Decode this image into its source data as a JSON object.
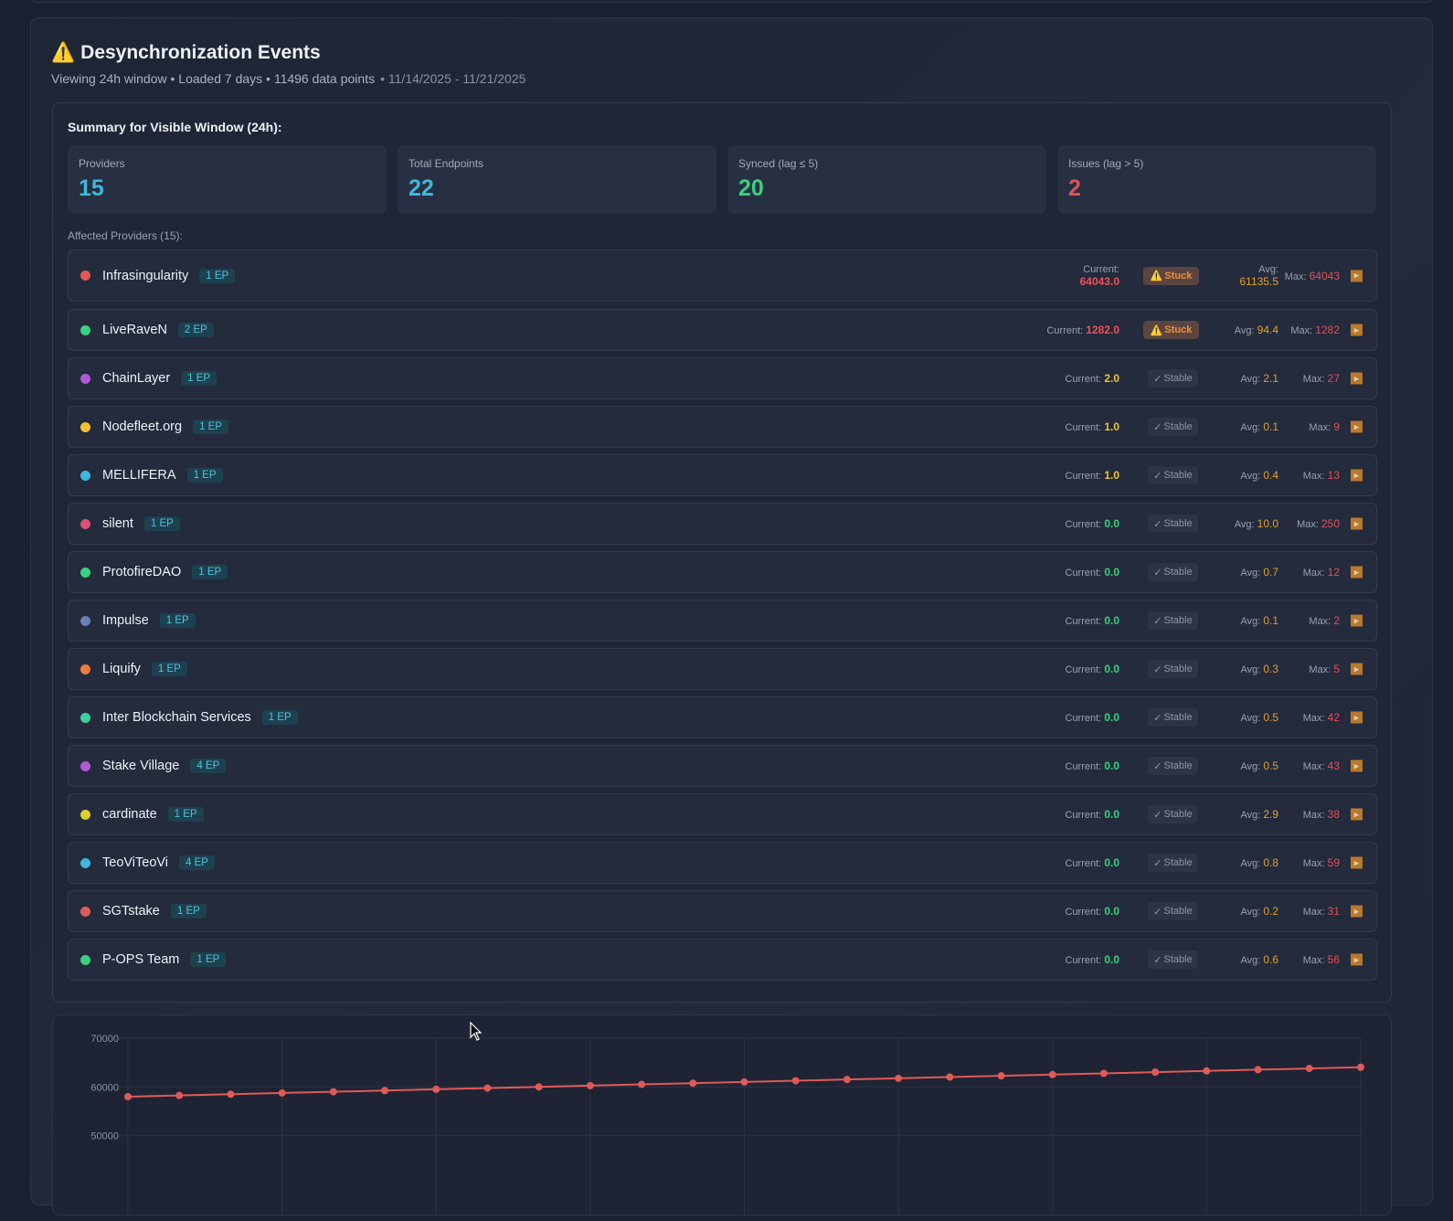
{
  "header": {
    "title": "Desynchronization Events",
    "icon": "warning-icon",
    "subtitle": "Viewing 24h window • Loaded 7 days • 11496 data points",
    "date_range": "• 11/14/2025 - 11/21/2025"
  },
  "summary": {
    "title": "Summary for Visible Window (24h):",
    "stats": [
      {
        "label": "Providers",
        "value": "15",
        "color": "#3fb8db"
      },
      {
        "label": "Total Endpoints",
        "value": "22",
        "color": "#3fb8db"
      },
      {
        "label": "Synced (lag ≤ 5)",
        "value": "20",
        "color": "#3ad17e"
      },
      {
        "label": "Issues (lag > 5)",
        "value": "2",
        "color": "#e0505a"
      }
    ],
    "affected_label": "Affected Providers (15):",
    "current_label": "Current:",
    "avg_label": "Avg:",
    "max_label": "Max:",
    "providers": [
      {
        "name": "Infrasingularity",
        "ep": "1 EP",
        "dot": "#e05a5a",
        "current": "64043.0",
        "cur_color": "#f0505a",
        "status": "Stuck",
        "avg": "61135.5",
        "max": "64043"
      },
      {
        "name": "LiveRaveN",
        "ep": "2 EP",
        "dot": "#3ad17e",
        "current": "1282.0",
        "cur_color": "#f0505a",
        "status": "Stuck",
        "avg": "94.4",
        "max": "1282"
      },
      {
        "name": "ChainLayer",
        "ep": "1 EP",
        "dot": "#b05ad8",
        "current": "2.0",
        "cur_color": "#f2c230",
        "status": "Stable",
        "avg": "2.1",
        "max": "27"
      },
      {
        "name": "Nodefleet.org",
        "ep": "1 EP",
        "dot": "#f2c230",
        "current": "1.0",
        "cur_color": "#f2c230",
        "status": "Stable",
        "avg": "0.1",
        "max": "9"
      },
      {
        "name": "MELLIFERA",
        "ep": "1 EP",
        "dot": "#3fb8db",
        "current": "1.0",
        "cur_color": "#f2c230",
        "status": "Stable",
        "avg": "0.4",
        "max": "13"
      },
      {
        "name": "silent",
        "ep": "1 EP",
        "dot": "#d8507a",
        "current": "0.0",
        "cur_color": "#3ad17e",
        "status": "Stable",
        "avg": "10.0",
        "max": "250"
      },
      {
        "name": "ProtofireDAO",
        "ep": "1 EP",
        "dot": "#3ad17e",
        "current": "0.0",
        "cur_color": "#3ad17e",
        "status": "Stable",
        "avg": "0.7",
        "max": "12"
      },
      {
        "name": "Impulse",
        "ep": "1 EP",
        "dot": "#6a80b8",
        "current": "0.0",
        "cur_color": "#3ad17e",
        "status": "Stable",
        "avg": "0.1",
        "max": "2"
      },
      {
        "name": "Liquify",
        "ep": "1 EP",
        "dot": "#f07a40",
        "current": "0.0",
        "cur_color": "#3ad17e",
        "status": "Stable",
        "avg": "0.3",
        "max": "5"
      },
      {
        "name": "Inter Blockchain Services",
        "ep": "1 EP",
        "dot": "#3ad1a0",
        "current": "0.0",
        "cur_color": "#3ad17e",
        "status": "Stable",
        "avg": "0.5",
        "max": "42"
      },
      {
        "name": "Stake Village",
        "ep": "4 EP",
        "dot": "#b05ad8",
        "current": "0.0",
        "cur_color": "#3ad17e",
        "status": "Stable",
        "avg": "0.5",
        "max": "43"
      },
      {
        "name": "cardinate",
        "ep": "1 EP",
        "dot": "#d8d030",
        "current": "0.0",
        "cur_color": "#3ad17e",
        "status": "Stable",
        "avg": "2.9",
        "max": "38"
      },
      {
        "name": "TeoViTeoVi",
        "ep": "4 EP",
        "dot": "#3fb8db",
        "current": "0.0",
        "cur_color": "#3ad17e",
        "status": "Stable",
        "avg": "0.8",
        "max": "59"
      },
      {
        "name": "SGTstake",
        "ep": "1 EP",
        "dot": "#e05a5a",
        "current": "0.0",
        "cur_color": "#3ad17e",
        "status": "Stable",
        "avg": "0.2",
        "max": "31"
      },
      {
        "name": "P-OPS Team",
        "ep": "1 EP",
        "dot": "#3ad17e",
        "current": "0.0",
        "cur_color": "#3ad17e",
        "status": "Stable",
        "avg": "0.6",
        "max": "56"
      }
    ]
  },
  "colors": {
    "avg": "#e0a030",
    "max": "#e0505a",
    "line": "#e05a5a"
  },
  "chart_data": {
    "type": "line",
    "yticks": [
      "70000",
      "60000",
      "50000"
    ],
    "ylim": [
      40000,
      70000
    ],
    "grid": true,
    "series": [
      {
        "color": "#e05a5a",
        "values": [
          58000,
          58252,
          58504,
          58755,
          59007,
          59259,
          59511,
          59763,
          60014,
          60266,
          60518,
          60770,
          61022,
          61273,
          61525,
          61777,
          62029,
          62281,
          62532,
          62784,
          63036,
          63288,
          63540,
          63791,
          64043
        ]
      }
    ]
  }
}
